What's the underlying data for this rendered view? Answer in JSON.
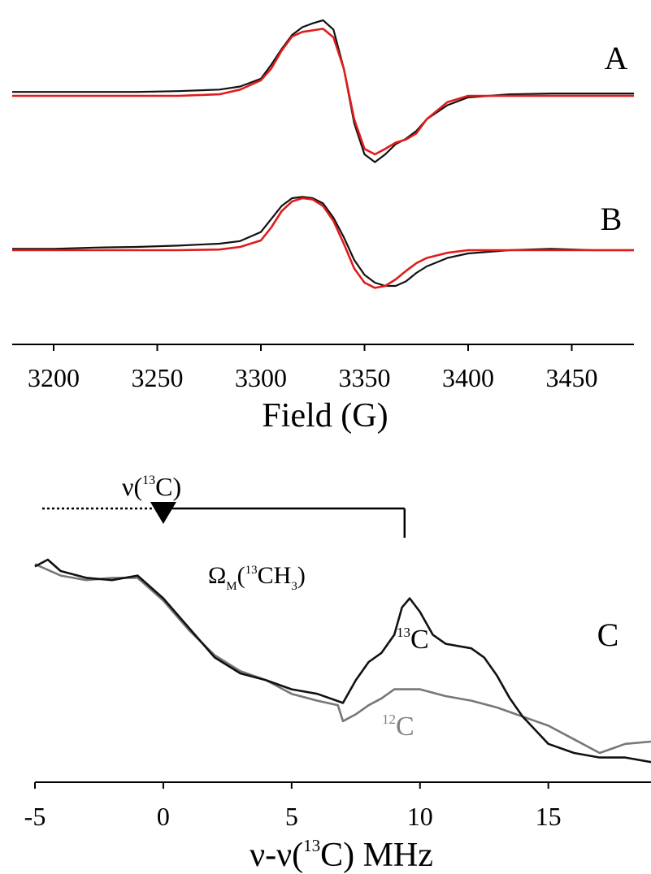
{
  "chart_data": [
    {
      "type": "line",
      "xlabel": "Field (G)",
      "xlim": [
        3180,
        3480
      ],
      "xticks": [
        3200,
        3250,
        3300,
        3350,
        3400,
        3450
      ],
      "ylabel": "",
      "grid": false,
      "panels": [
        {
          "label": "A",
          "series": [
            {
              "role": "experimental",
              "color": "#111111",
              "x": [
                3180,
                3200,
                3220,
                3240,
                3260,
                3280,
                3290,
                3300,
                3305,
                3310,
                3315,
                3320,
                3325,
                3330,
                3335,
                3340,
                3345,
                3350,
                3355,
                3360,
                3365,
                3370,
                3375,
                3380,
                3390,
                3400,
                3420,
                3440,
                3460,
                3480
              ],
              "y": [
                0.05,
                0.05,
                0.05,
                0.05,
                0.06,
                0.08,
                0.12,
                0.22,
                0.4,
                0.6,
                0.78,
                0.88,
                0.93,
                0.97,
                0.85,
                0.35,
                -0.35,
                -0.75,
                -0.85,
                -0.75,
                -0.62,
                -0.55,
                -0.45,
                -0.3,
                -0.12,
                -0.02,
                0.02,
                0.03,
                0.03,
                0.03
              ]
            },
            {
              "role": "fit",
              "color": "#e01b1b",
              "x": [
                3180,
                3200,
                3220,
                3240,
                3260,
                3280,
                3290,
                3300,
                3305,
                3310,
                3315,
                3320,
                3325,
                3330,
                3335,
                3340,
                3345,
                3350,
                3355,
                3360,
                3365,
                3370,
                3375,
                3380,
                3390,
                3400,
                3420,
                3440,
                3460,
                3480
              ],
              "y": [
                0,
                0,
                0,
                0,
                0,
                0.02,
                0.08,
                0.2,
                0.35,
                0.58,
                0.76,
                0.82,
                0.84,
                0.86,
                0.75,
                0.35,
                -0.3,
                -0.68,
                -0.75,
                -0.68,
                -0.6,
                -0.56,
                -0.48,
                -0.3,
                -0.08,
                0,
                0,
                0,
                0,
                0
              ]
            }
          ]
        },
        {
          "label": "B",
          "series": [
            {
              "role": "experimental",
              "color": "#111111",
              "x": [
                3180,
                3200,
                3220,
                3240,
                3260,
                3280,
                3290,
                3300,
                3305,
                3310,
                3315,
                3320,
                3325,
                3330,
                3335,
                3340,
                3345,
                3350,
                3355,
                3360,
                3365,
                3370,
                3375,
                3380,
                3390,
                3400,
                3420,
                3440,
                3460,
                3480
              ],
              "y": [
                0.02,
                0.02,
                0.04,
                0.05,
                0.07,
                0.1,
                0.14,
                0.28,
                0.48,
                0.68,
                0.8,
                0.82,
                0.8,
                0.72,
                0.5,
                0.2,
                -0.15,
                -0.38,
                -0.5,
                -0.55,
                -0.55,
                -0.48,
                -0.35,
                -0.25,
                -0.12,
                -0.05,
                0,
                0.02,
                0,
                0
              ]
            },
            {
              "role": "fit",
              "color": "#e01b1b",
              "x": [
                3180,
                3200,
                3220,
                3240,
                3260,
                3280,
                3290,
                3300,
                3305,
                3310,
                3315,
                3320,
                3325,
                3330,
                3335,
                3340,
                3345,
                3350,
                3355,
                3360,
                3365,
                3370,
                3375,
                3380,
                3390,
                3400,
                3420,
                3440,
                3460,
                3480
              ],
              "y": [
                0,
                0,
                0,
                0,
                0,
                0.01,
                0.05,
                0.15,
                0.35,
                0.6,
                0.75,
                0.8,
                0.78,
                0.68,
                0.45,
                0.1,
                -0.28,
                -0.5,
                -0.58,
                -0.55,
                -0.45,
                -0.32,
                -0.2,
                -0.12,
                -0.04,
                0,
                0,
                0,
                0,
                0
              ]
            }
          ]
        }
      ]
    },
    {
      "type": "line",
      "label": "C",
      "xlabel": "ν-ν(13C) MHz",
      "xlim": [
        -5,
        19
      ],
      "xticks": [
        -5,
        0,
        5,
        10,
        15
      ],
      "ylabel": "",
      "grid": false,
      "series": [
        {
          "name": "13C",
          "color": "#111111",
          "x": [
            -5,
            -4.5,
            -4,
            -3,
            -2,
            -1,
            0,
            1,
            2,
            3,
            4,
            5,
            6,
            7,
            7.5,
            8,
            8.5,
            9,
            9.3,
            9.6,
            10,
            10.5,
            11,
            12,
            12.5,
            13,
            13.5,
            14,
            14.5,
            15,
            16,
            17,
            18,
            19
          ],
          "y": [
            0.92,
            0.95,
            0.9,
            0.87,
            0.86,
            0.88,
            0.78,
            0.65,
            0.52,
            0.45,
            0.42,
            0.38,
            0.36,
            0.32,
            0.42,
            0.5,
            0.54,
            0.62,
            0.74,
            0.78,
            0.72,
            0.62,
            0.58,
            0.56,
            0.52,
            0.44,
            0.34,
            0.26,
            0.2,
            0.14,
            0.1,
            0.08,
            0.08,
            0.06
          ]
        },
        {
          "name": "12C",
          "color": "#777777",
          "x": [
            -5,
            -4,
            -3,
            -2,
            -1,
            0,
            1,
            2,
            3,
            4,
            5,
            6,
            6.8,
            7,
            7.5,
            8,
            8.5,
            9,
            9.5,
            10,
            11,
            12,
            13,
            14,
            15,
            16,
            17,
            18,
            19
          ],
          "y": [
            0.93,
            0.88,
            0.86,
            0.87,
            0.87,
            0.77,
            0.64,
            0.53,
            0.46,
            0.42,
            0.36,
            0.33,
            0.31,
            0.24,
            0.27,
            0.31,
            0.34,
            0.38,
            0.38,
            0.38,
            0.35,
            0.33,
            0.3,
            0.26,
            0.22,
            0.16,
            0.1,
            0.14,
            0.15
          ]
        }
      ],
      "annotations": {
        "nu_label": "ν(",
        "nu_sup": "13",
        "nu_tail": "C)",
        "omega_label": "Ω",
        "omega_sub": "M",
        "omega_open": "(",
        "omega_sup": "13",
        "omega_mid": "CH",
        "omega_sub3": "3",
        "omega_close": ")",
        "series_13C_sup": "13",
        "series_13C_tail": "C",
        "series_12C_sup": "12",
        "series_12C_tail": "C",
        "xlabel_a": "ν-ν(",
        "xlabel_sup": "13",
        "xlabel_b": "C) MHz",
        "marker_x": 0,
        "bracket_end_x": 9.4
      }
    }
  ]
}
